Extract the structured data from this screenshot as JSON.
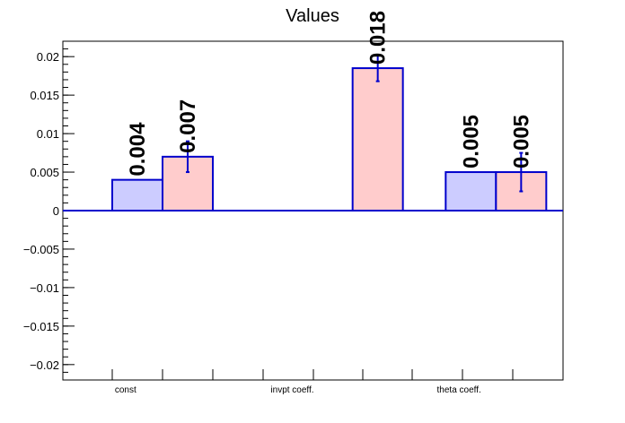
{
  "chart_data": {
    "type": "bar",
    "title": "Values",
    "categories": [
      "const",
      "invpt coeff.",
      "theta coeff."
    ],
    "series": [
      {
        "values": [
          0.004,
          null,
          0.005
        ],
        "value_labels": [
          "0.004",
          "",
          "0.005"
        ],
        "errors": [
          null,
          null,
          null
        ],
        "fill": "#ccccff",
        "stroke": "#0000cc"
      },
      {
        "values": [
          0.007,
          0.0185,
          0.005
        ],
        "value_labels": [
          "0.007",
          "0.018",
          "0.005"
        ],
        "errors": [
          0.002,
          0.0017,
          0.0025
        ],
        "fill": "#ffcccc",
        "stroke": "#0000cc"
      }
    ],
    "yticks": [
      0.02,
      0.015,
      0.01,
      0.005,
      0,
      -0.005,
      -0.01,
      -0.015,
      -0.02
    ],
    "ytick_labels": [
      "0.02",
      "0.015",
      "0.01",
      "0.005",
      "0",
      "−0.005",
      "−0.01",
      "−0.015",
      "−0.02"
    ],
    "ylim": [
      -0.022,
      0.022
    ],
    "xlabel": "",
    "ylabel": "",
    "grid": false,
    "legend": "none"
  }
}
